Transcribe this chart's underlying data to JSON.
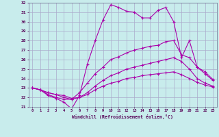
{
  "xlabel": "Windchill (Refroidissement éolien,°C)",
  "background_color": "#c8ecec",
  "grid_color": "#aaaacc",
  "line_color": "#aa00aa",
  "xlim": [
    -0.5,
    23.5
  ],
  "ylim": [
    21,
    32
  ],
  "xticks": [
    0,
    1,
    2,
    3,
    4,
    5,
    6,
    7,
    8,
    9,
    10,
    11,
    12,
    13,
    14,
    15,
    16,
    17,
    18,
    19,
    20,
    21,
    22,
    23
  ],
  "yticks": [
    21,
    22,
    23,
    24,
    25,
    26,
    27,
    28,
    29,
    30,
    31,
    32
  ],
  "lines": [
    [
      23.0,
      22.8,
      22.2,
      21.9,
      21.5,
      20.8,
      22.2,
      25.5,
      28.0,
      30.2,
      31.8,
      31.5,
      31.1,
      31.0,
      30.4,
      30.4,
      31.2,
      31.5,
      30.0,
      26.2,
      28.0,
      25.2,
      24.5,
      23.8
    ],
    [
      23.0,
      22.8,
      22.3,
      22.0,
      21.8,
      21.8,
      22.5,
      23.5,
      24.5,
      25.2,
      26.0,
      26.3,
      26.7,
      27.0,
      27.2,
      27.4,
      27.5,
      27.9,
      28.0,
      26.5,
      26.2,
      25.2,
      24.7,
      23.9
    ],
    [
      23.0,
      22.8,
      22.5,
      22.3,
      22.0,
      21.8,
      22.0,
      22.5,
      23.2,
      23.8,
      24.3,
      24.6,
      25.0,
      25.2,
      25.4,
      25.6,
      25.8,
      26.0,
      26.2,
      25.8,
      25.0,
      24.0,
      23.5,
      23.2
    ],
    [
      23.0,
      22.8,
      22.5,
      22.3,
      22.2,
      21.9,
      22.0,
      22.3,
      22.8,
      23.2,
      23.5,
      23.7,
      24.0,
      24.1,
      24.3,
      24.4,
      24.5,
      24.6,
      24.7,
      24.4,
      24.0,
      23.6,
      23.3,
      23.1
    ]
  ]
}
